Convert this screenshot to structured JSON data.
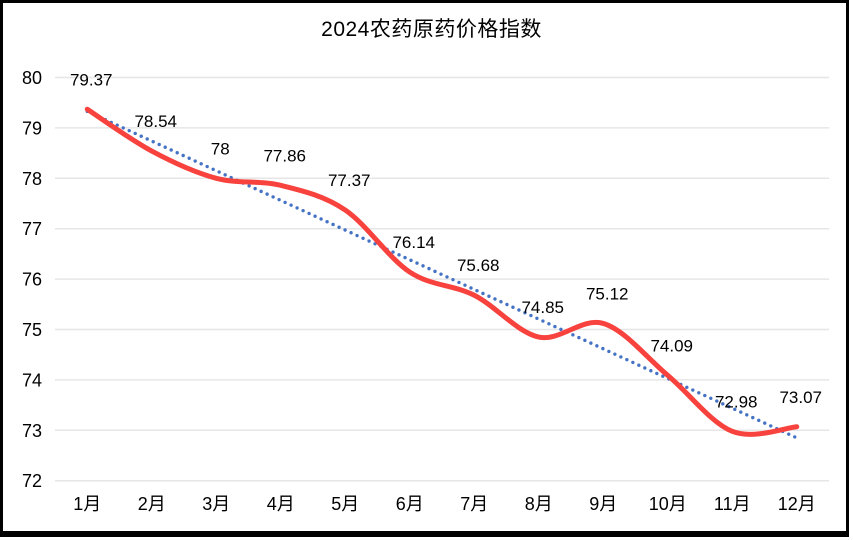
{
  "title": "2024农药原药价格指数",
  "chart_data": {
    "type": "line",
    "title": "2024农药原药价格指数",
    "categories": [
      "1月",
      "2月",
      "3月",
      "4月",
      "5月",
      "6月",
      "7月",
      "8月",
      "9月",
      "10月",
      "11月",
      "12月"
    ],
    "series": [
      {
        "values": [
          79.37,
          78.54,
          78,
          77.86,
          77.37,
          76.14,
          75.68,
          74.85,
          75.12,
          74.09,
          72.98,
          73.07
        ],
        "data_labels": [
          "79.37",
          "78.54",
          "78",
          "77.86",
          "77.37",
          "76.14",
          "75.68",
          "74.85",
          "75.12",
          "74.09",
          "72.98",
          "73.07"
        ],
        "line_style": "smooth",
        "color": "#f8423e"
      }
    ],
    "trendline": {
      "type": "linear",
      "style": "dotted",
      "color": "#4472c4"
    },
    "y_axis": {
      "min": 72,
      "max": 80,
      "step": 1,
      "ticks": [
        "80",
        "79",
        "78",
        "77",
        "76",
        "75",
        "74",
        "73",
        "72"
      ]
    },
    "xlabel": "",
    "ylabel": "",
    "grid": true,
    "legend": "none",
    "colors": {
      "series_line": "#f8423e",
      "trendline": "#4472c4",
      "gridline": "#e6e6e6",
      "text": "#000000",
      "border": "#000000",
      "background": "#ffffff"
    }
  }
}
